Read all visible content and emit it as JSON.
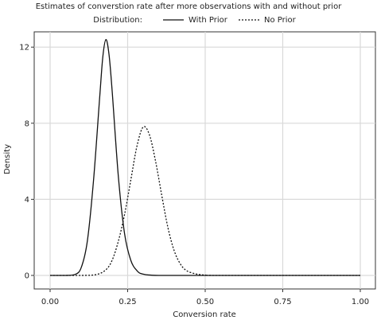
{
  "chart_data": {
    "type": "line",
    "title": "Estimates of converstion rate after more observations with and without prior",
    "legend": {
      "title": "Distribution:",
      "placement": "top",
      "entries": [
        "With Prior",
        "No Prior"
      ]
    },
    "xlabel": "Conversion rate",
    "ylabel": "Density",
    "xlim": [
      0.0,
      1.0
    ],
    "ylim": [
      0,
      13
    ],
    "x_ticks": [
      "0.00",
      "0.25",
      "0.50",
      "0.75",
      "1.00"
    ],
    "y_ticks": [
      "0",
      "4",
      "8",
      "12"
    ],
    "grid": true,
    "series": [
      {
        "name": "With Prior",
        "style": "solid",
        "color": "#111111",
        "x": [
          0.0,
          0.05,
          0.08,
          0.1,
          0.12,
          0.14,
          0.16,
          0.17,
          0.18,
          0.19,
          0.2,
          0.22,
          0.24,
          0.26,
          0.28,
          0.3,
          0.35,
          0.5,
          1.0
        ],
        "y": [
          0.0,
          0.0,
          0.05,
          0.4,
          1.8,
          5.0,
          9.4,
          11.5,
          12.4,
          11.6,
          9.7,
          5.2,
          2.2,
          0.8,
          0.25,
          0.07,
          0.0,
          0.0,
          0.0
        ]
      },
      {
        "name": "No Prior",
        "style": "dashed",
        "color": "#111111",
        "x": [
          0.0,
          0.1,
          0.15,
          0.18,
          0.2,
          0.22,
          0.24,
          0.26,
          0.28,
          0.3,
          0.32,
          0.34,
          0.36,
          0.38,
          0.4,
          0.42,
          0.44,
          0.47,
          0.5,
          0.55,
          1.0
        ],
        "y": [
          0.0,
          0.0,
          0.05,
          0.3,
          0.8,
          1.8,
          3.2,
          5.0,
          6.8,
          7.8,
          7.4,
          6.0,
          4.2,
          2.5,
          1.3,
          0.6,
          0.25,
          0.08,
          0.02,
          0.0,
          0.0
        ]
      }
    ]
  }
}
